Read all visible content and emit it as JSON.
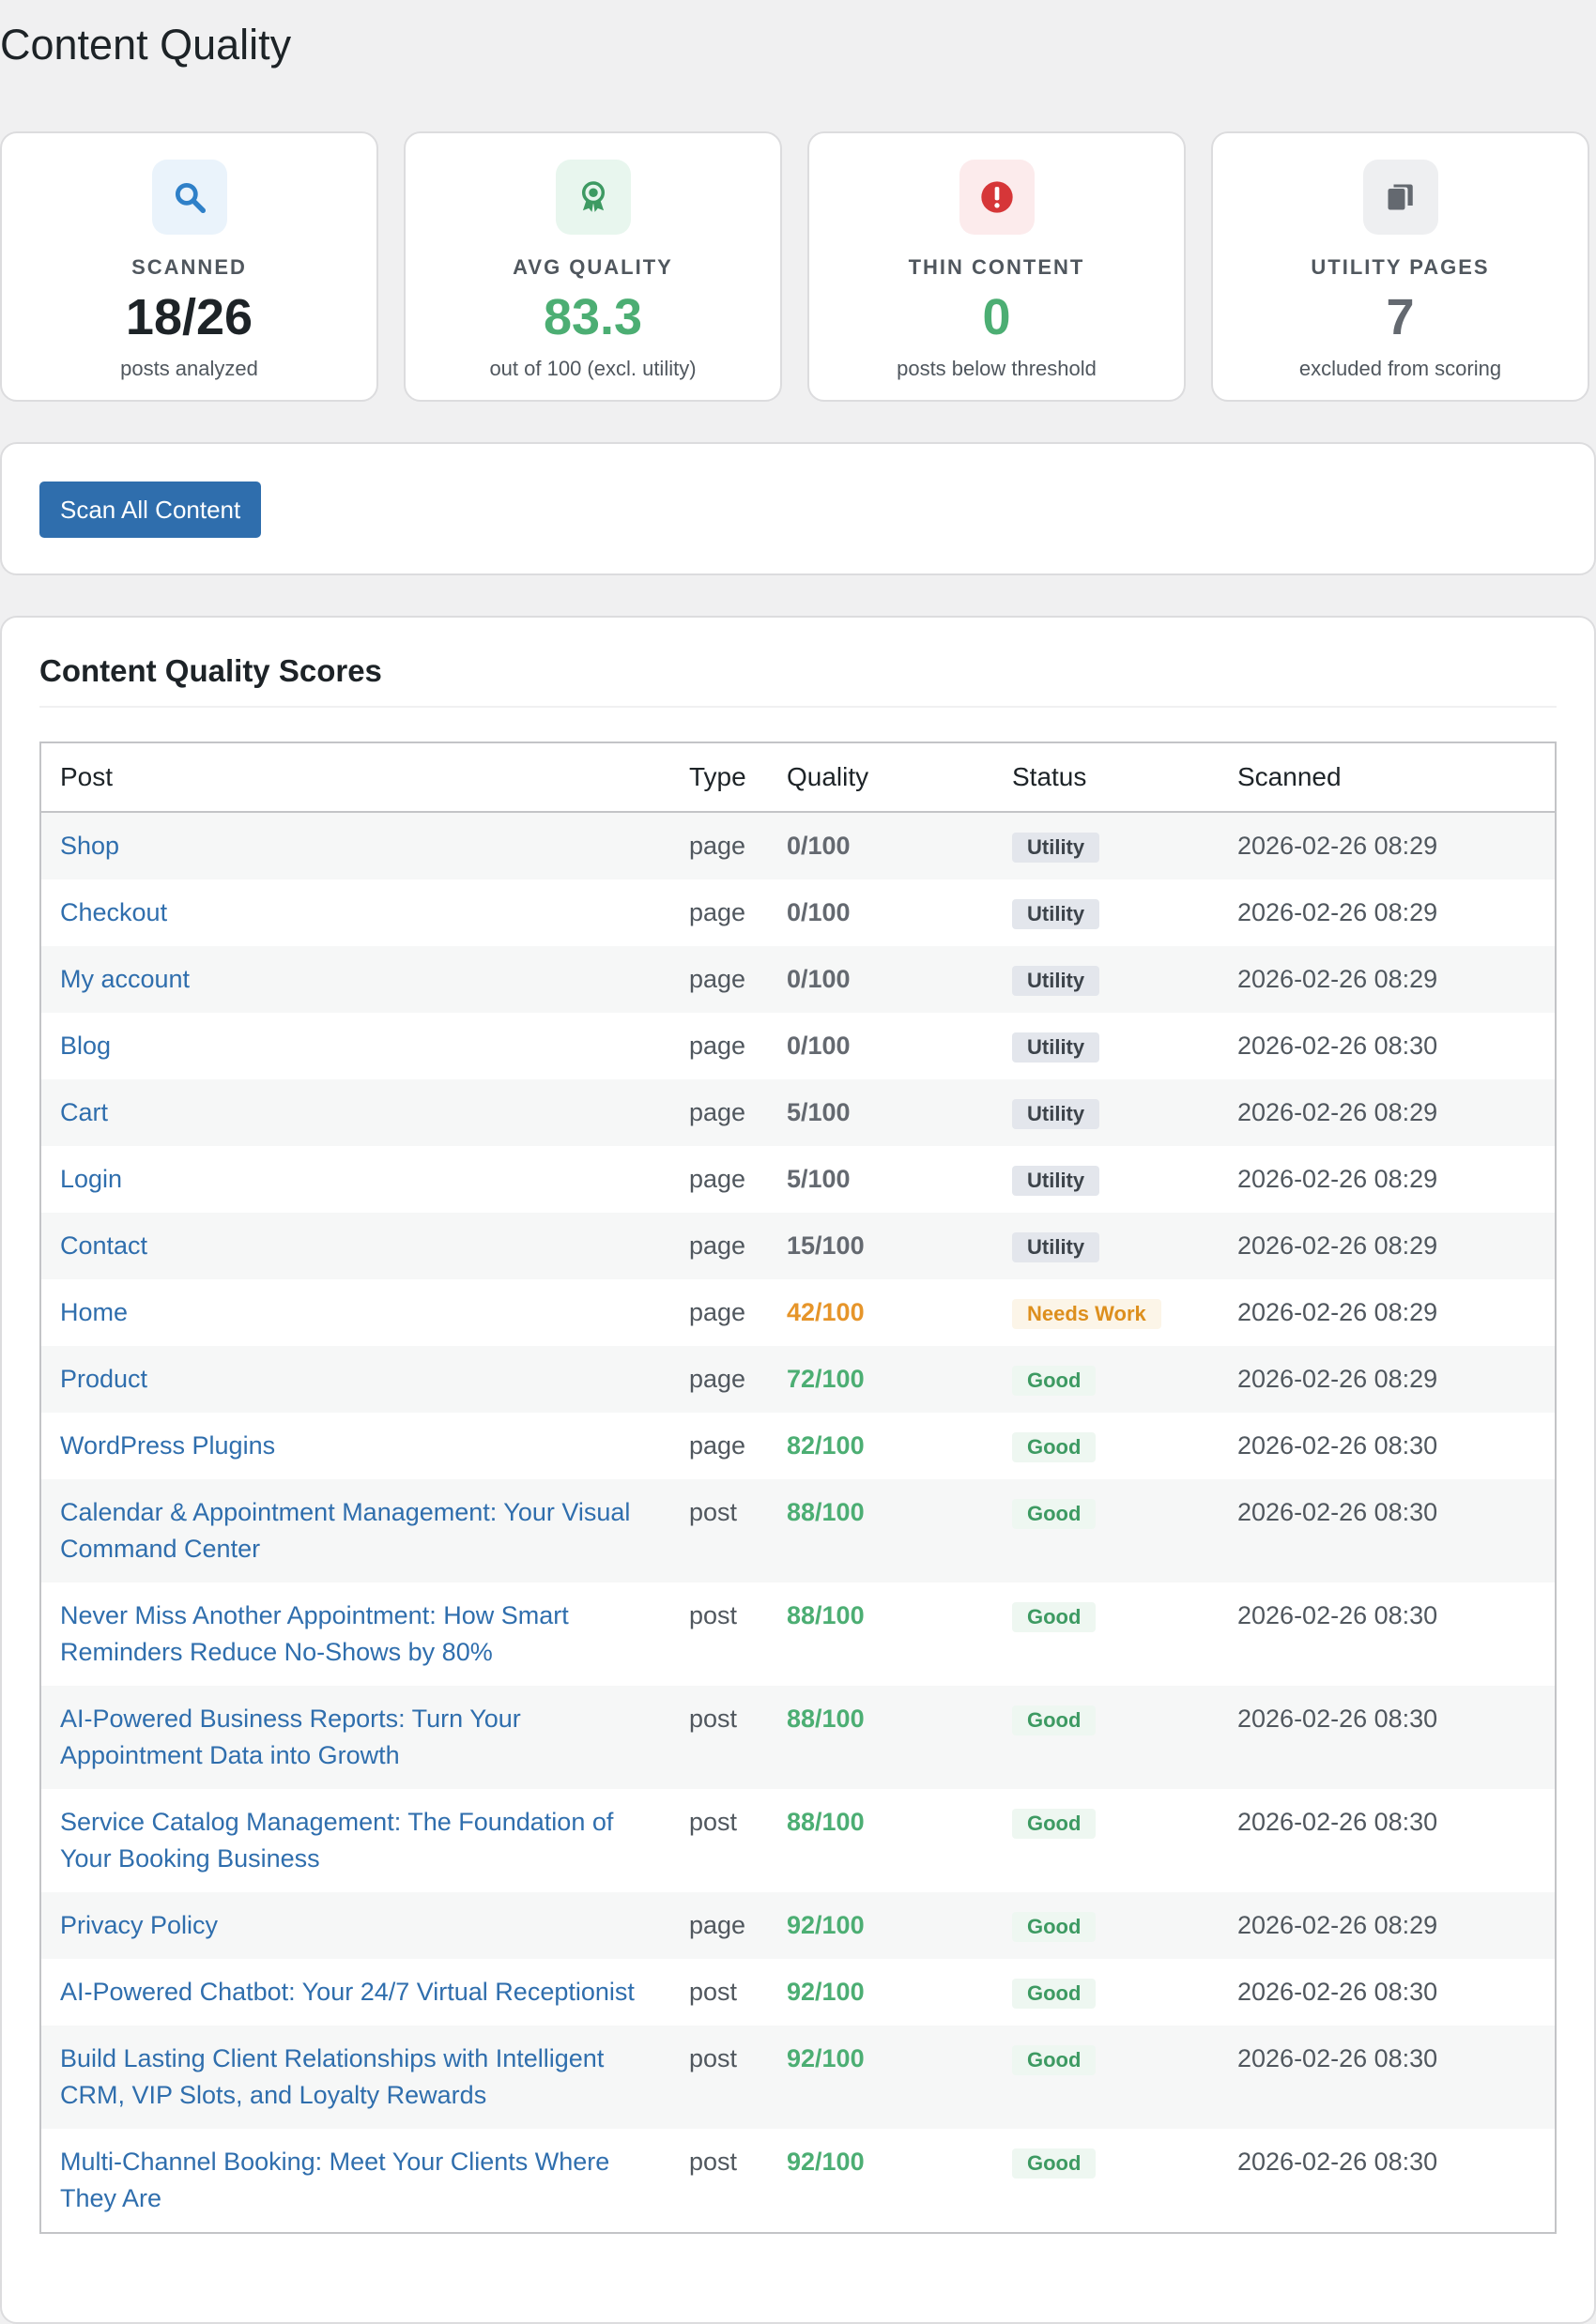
{
  "page": {
    "title": "Content Quality"
  },
  "stats": [
    {
      "label": "SCANNED",
      "value": "18/26",
      "sub": "posts analyzed",
      "icon": "search-icon",
      "color": "#1d2327",
      "icon_color": "#2f80c8",
      "icon_bg": "#eaf3fb"
    },
    {
      "label": "AVG QUALITY",
      "value": "83.3",
      "sub": "out of 100 (excl. utility)",
      "icon": "award-icon",
      "color": "#4cae73",
      "icon_color": "#3d9a62",
      "icon_bg": "#e8f6ee"
    },
    {
      "label": "THIN CONTENT",
      "value": "0",
      "sub": "posts below threshold",
      "icon": "alert-icon",
      "color": "#4cae73",
      "icon_color": "#d63638",
      "icon_bg": "#fcebec"
    },
    {
      "label": "UTILITY PAGES",
      "value": "7",
      "sub": "excluded from scoring",
      "icon": "copy-icon",
      "color": "#646970",
      "icon_color": "#646970",
      "icon_bg": "#eeeff1"
    }
  ],
  "actions": {
    "scan_label": "Scan All Content"
  },
  "scores": {
    "title": "Content Quality Scores",
    "columns": [
      "Post",
      "Type",
      "Quality",
      "Status",
      "Scanned"
    ],
    "rows": [
      {
        "post": "Shop",
        "type": "page",
        "quality": "0/100",
        "status": "Utility",
        "scanned": "2026-02-26 08:29"
      },
      {
        "post": "Checkout",
        "type": "page",
        "quality": "0/100",
        "status": "Utility",
        "scanned": "2026-02-26 08:29"
      },
      {
        "post": "My account",
        "type": "page",
        "quality": "0/100",
        "status": "Utility",
        "scanned": "2026-02-26 08:29"
      },
      {
        "post": "Blog",
        "type": "page",
        "quality": "0/100",
        "status": "Utility",
        "scanned": "2026-02-26 08:30"
      },
      {
        "post": "Cart",
        "type": "page",
        "quality": "5/100",
        "status": "Utility",
        "scanned": "2026-02-26 08:29"
      },
      {
        "post": "Login",
        "type": "page",
        "quality": "5/100",
        "status": "Utility",
        "scanned": "2026-02-26 08:29"
      },
      {
        "post": "Contact",
        "type": "page",
        "quality": "15/100",
        "status": "Utility",
        "scanned": "2026-02-26 08:29"
      },
      {
        "post": "Home",
        "type": "page",
        "quality": "42/100",
        "status": "Needs Work",
        "scanned": "2026-02-26 08:29"
      },
      {
        "post": "Product",
        "type": "page",
        "quality": "72/100",
        "status": "Good",
        "scanned": "2026-02-26 08:29"
      },
      {
        "post": "WordPress Plugins",
        "type": "page",
        "quality": "82/100",
        "status": "Good",
        "scanned": "2026-02-26 08:30"
      },
      {
        "post": "Calendar & Appointment Management: Your Visual Command Center",
        "type": "post",
        "quality": "88/100",
        "status": "Good",
        "scanned": "2026-02-26 08:30"
      },
      {
        "post": "Never Miss Another Appointment: How Smart Reminders Reduce No-Shows by 80%",
        "type": "post",
        "quality": "88/100",
        "status": "Good",
        "scanned": "2026-02-26 08:30"
      },
      {
        "post": "AI-Powered Business Reports: Turn Your Appointment Data into Growth",
        "type": "post",
        "quality": "88/100",
        "status": "Good",
        "scanned": "2026-02-26 08:30"
      },
      {
        "post": "Service Catalog Management: The Foundation of Your Booking Business",
        "type": "post",
        "quality": "88/100",
        "status": "Good",
        "scanned": "2026-02-26 08:30"
      },
      {
        "post": "Privacy Policy",
        "type": "page",
        "quality": "92/100",
        "status": "Good",
        "scanned": "2026-02-26 08:29"
      },
      {
        "post": "AI-Powered Chatbot: Your 24/7 Virtual Receptionist",
        "type": "post",
        "quality": "92/100",
        "status": "Good",
        "scanned": "2026-02-26 08:30"
      },
      {
        "post": "Build Lasting Client Relationships with Intelligent CRM, VIP Slots, and Loyalty Rewards",
        "type": "post",
        "quality": "92/100",
        "status": "Good",
        "scanned": "2026-02-26 08:30"
      },
      {
        "post": "Multi-Channel Booking: Meet Your Clients Where They Are",
        "type": "post",
        "quality": "92/100",
        "status": "Good",
        "scanned": "2026-02-26 08:30"
      }
    ]
  }
}
